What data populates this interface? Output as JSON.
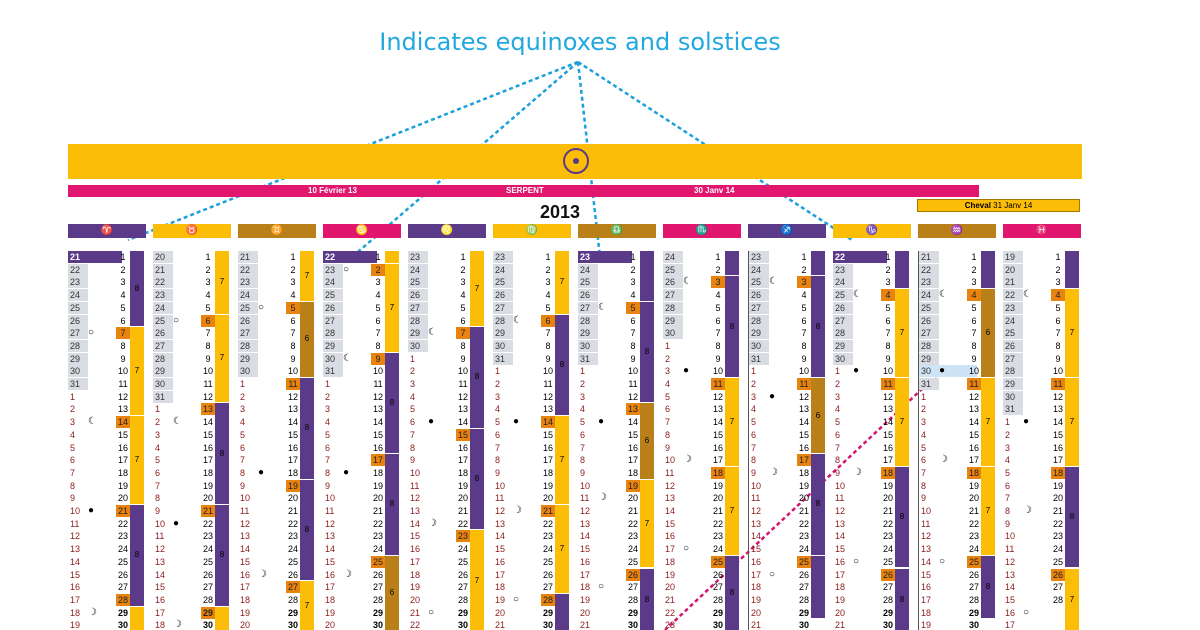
{
  "annotation": {
    "text": "Indicates equinoxes and solstices"
  },
  "year": "2013",
  "serpent": {
    "start": "10 Février 13",
    "name": "SERPENT",
    "end": "30 Janv 14"
  },
  "cheval": {
    "name": "Cheval",
    "date": "31 Janv 14"
  },
  "colors": {
    "purple": "#5b3a8a",
    "gold": "#fbbd05",
    "orange": "#e9830f",
    "ochre": "#b9801a",
    "magenta": "#e0166f",
    "grey": "#d9dde3",
    "red_text": "#8b1a1a"
  },
  "signs": [
    {
      "glyph": "♈",
      "color": "#5b3a8a"
    },
    {
      "glyph": "♉",
      "color": "#fbbd05"
    },
    {
      "glyph": "♊",
      "color": "#b9801a"
    },
    {
      "glyph": "♋",
      "color": "#e0166f"
    },
    {
      "glyph": "♌",
      "color": "#5b3a8a"
    },
    {
      "glyph": "♍",
      "color": "#fbbd05"
    },
    {
      "glyph": "♎",
      "color": "#b9801a"
    },
    {
      "glyph": "♏",
      "color": "#e0166f"
    },
    {
      "glyph": "♐",
      "color": "#5b3a8a"
    },
    {
      "glyph": "♑",
      "color": "#fbbd05"
    },
    {
      "glyph": "♒",
      "color": "#b9801a"
    },
    {
      "glyph": "♓",
      "color": "#e0166f"
    }
  ],
  "columns": [
    {
      "sign_start": 21,
      "month_len": 31,
      "prev_len": 31,
      "visible_rows": 30,
      "moon": {
        "27": "○",
        "3": "☾",
        "10": "●",
        "18": "☽"
      },
      "equinox": true,
      "right_start": 1,
      "right_hl": [
        7,
        14,
        21,
        28
      ],
      "segments": [
        {
          "len": 6,
          "color": "#5b3a8a",
          "label": "8"
        },
        {
          "len": 7,
          "color": "#fbbd05",
          "label": "7"
        },
        {
          "len": 7,
          "color": "#fbbd05",
          "label": "7"
        },
        {
          "len": 8,
          "color": "#5b3a8a",
          "label": "8"
        },
        {
          "len": 4,
          "color": "#fbbd05",
          "label": ""
        }
      ]
    },
    {
      "sign_start": 20,
      "month_len": 30,
      "prev_len": 31,
      "visible_rows": 30,
      "moon": {
        "25": "○",
        "2": "☾",
        "10": "●",
        "18": "☽"
      },
      "right_start": 1,
      "right_hl": [
        6,
        13,
        21,
        29
      ],
      "segments": [
        {
          "len": 5,
          "color": "#fbbd05",
          "label": "7"
        },
        {
          "len": 7,
          "color": "#fbbd05",
          "label": "7"
        },
        {
          "len": 8,
          "color": "#5b3a8a",
          "label": "8"
        },
        {
          "len": 8,
          "color": "#5b3a8a",
          "label": "8"
        },
        {
          "len": 4,
          "color": "#fbbd05",
          "label": ""
        }
      ]
    },
    {
      "sign_start": 21,
      "month_len": 31,
      "prev_len": 30,
      "visible_rows": 30,
      "moon": {
        "25": "○",
        "31": "☾",
        "8": "●",
        "16": "☽"
      },
      "right_start": 1,
      "right_hl": [
        5,
        11,
        19,
        27
      ],
      "segments": [
        {
          "len": 4,
          "color": "#fbbd05",
          "label": "7"
        },
        {
          "len": 6,
          "color": "#b9801a",
          "label": "6"
        },
        {
          "len": 8,
          "color": "#5b3a8a",
          "label": "8"
        },
        {
          "len": 8,
          "color": "#5b3a8a",
          "label": "8"
        },
        {
          "len": 4,
          "color": "#fbbd05",
          "label": "7"
        }
      ]
    },
    {
      "sign_start": 22,
      "month_len": 30,
      "prev_len": 31,
      "visible_rows": 30,
      "moon": {
        "23": "○",
        "30": "☾",
        "8": "●",
        "16": "☽"
      },
      "equinox": true,
      "right_start": 1,
      "right_hl": [
        2,
        9,
        17,
        25
      ],
      "segments": [
        {
          "len": 1,
          "color": "#fbbd05",
          "label": ""
        },
        {
          "len": 7,
          "color": "#fbbd05",
          "label": "7"
        },
        {
          "len": 8,
          "color": "#5b3a8a",
          "label": "8"
        },
        {
          "len": 8,
          "color": "#5b3a8a",
          "label": "8"
        },
        {
          "len": 6,
          "color": "#b9801a",
          "label": "6"
        }
      ]
    },
    {
      "sign_start": 23,
      "month_len": 31,
      "prev_len": 30,
      "visible_rows": 30,
      "moon": {
        "29": "☾",
        "6": "●",
        "14": "☽",
        "21": "○"
      },
      "right_start": 1,
      "right_hl": [
        7,
        15,
        23
      ],
      "segments": [
        {
          "len": 6,
          "color": "#fbbd05",
          "label": "7"
        },
        {
          "len": 8,
          "color": "#5b3a8a",
          "label": "8"
        },
        {
          "len": 8,
          "color": "#5b3a8a",
          "label": "8"
        },
        {
          "len": 8,
          "color": "#fbbd05",
          "label": "7"
        }
      ]
    },
    {
      "sign_start": 23,
      "month_len": 31,
      "prev_len": 31,
      "visible_rows": 30,
      "moon": {
        "28": "☾",
        "5": "●",
        "12": "☽",
        "19": "○"
      },
      "right_start": 1,
      "right_hl": [
        6,
        14,
        21,
        28
      ],
      "segments": [
        {
          "len": 5,
          "color": "#fbbd05",
          "label": "7"
        },
        {
          "len": 8,
          "color": "#5b3a8a",
          "label": "8"
        },
        {
          "len": 7,
          "color": "#fbbd05",
          "label": "7"
        },
        {
          "len": 7,
          "color": "#fbbd05",
          "label": "7"
        },
        {
          "len": 4,
          "color": "#5b3a8a",
          "label": ""
        }
      ]
    },
    {
      "sign_start": 23,
      "month_len": 30,
      "prev_len": 31,
      "visible_rows": 30,
      "moon": {
        "27": "☾",
        "5": "●",
        "11": "☽",
        "18": "○"
      },
      "equinox": true,
      "right_start": 1,
      "right_hl": [
        5,
        13,
        19,
        26
      ],
      "segments": [
        {
          "len": 4,
          "color": "#5b3a8a",
          "label": ""
        },
        {
          "len": 8,
          "color": "#5b3a8a",
          "label": "8"
        },
        {
          "len": 6,
          "color": "#b9801a",
          "label": "6"
        },
        {
          "len": 7,
          "color": "#fbbd05",
          "label": "7"
        },
        {
          "len": 5,
          "color": "#5b3a8a",
          "label": "8"
        }
      ]
    },
    {
      "sign_start": 24,
      "month_len": 31,
      "prev_len": 30,
      "visible_rows": 30,
      "moon": {
        "26": "☾",
        "3": "●",
        "10": "☽",
        "17": "○"
      },
      "right_start": 1,
      "right_hl": [
        3,
        11,
        18,
        25
      ],
      "segments": [
        {
          "len": 2,
          "color": "#5b3a8a",
          "label": ""
        },
        {
          "len": 8,
          "color": "#5b3a8a",
          "label": "8"
        },
        {
          "len": 7,
          "color": "#fbbd05",
          "label": "7"
        },
        {
          "len": 7,
          "color": "#fbbd05",
          "label": "7"
        },
        {
          "len": 6,
          "color": "#5b3a8a",
          "label": "8"
        }
      ]
    },
    {
      "sign_start": 23,
      "month_len": 30,
      "prev_len": 31,
      "visible_rows": 29,
      "moon": {
        "25": "☾",
        "3": "●",
        "9": "☽",
        "17": "○"
      },
      "boxed": true,
      "right_start": 1,
      "right_hl": [
        3,
        11,
        17,
        25
      ],
      "segments": [
        {
          "len": 2,
          "color": "#5b3a8a",
          "label": ""
        },
        {
          "len": 8,
          "color": "#5b3a8a",
          "label": "8"
        },
        {
          "len": 6,
          "color": "#b9801a",
          "label": "6"
        },
        {
          "len": 8,
          "color": "#5b3a8a",
          "label": "8"
        },
        {
          "len": 5,
          "color": "#5b3a8a",
          "label": ""
        }
      ]
    },
    {
      "sign_start": 22,
      "month_len": 31,
      "prev_len": 30,
      "visible_rows": 30,
      "moon": {
        "25": "☾",
        "1": "●",
        "9": "☽",
        "16": "○"
      },
      "equinox": true,
      "right_start": 1,
      "right_hl": [
        4,
        11,
        18,
        26
      ],
      "segments": [
        {
          "len": 3,
          "color": "#5b3a8a",
          "label": ""
        },
        {
          "len": 7,
          "color": "#fbbd05",
          "label": "7"
        },
        {
          "len": 7,
          "color": "#fbbd05",
          "label": "7"
        },
        {
          "len": 8,
          "color": "#5b3a8a",
          "label": "8"
        },
        {
          "len": 5,
          "color": "#5b3a8a",
          "label": "8"
        }
      ]
    },
    {
      "sign_start": 21,
      "month_len": 31,
      "prev_len": 31,
      "visible_rows": 29,
      "moon": {
        "24": "☾",
        "30": "●",
        "6": "☽",
        "14": "○"
      },
      "boxed": true,
      "highlight_row": 9,
      "right_start": 1,
      "right_hl": [
        4,
        11,
        18,
        25
      ],
      "segments": [
        {
          "len": 3,
          "color": "#5b3a8a",
          "label": ""
        },
        {
          "len": 7,
          "color": "#b9801a",
          "label": "6"
        },
        {
          "len": 7,
          "color": "#fbbd05",
          "label": "7"
        },
        {
          "len": 7,
          "color": "#fbbd05",
          "label": "7"
        },
        {
          "len": 5,
          "color": "#5b3a8a",
          "label": "8"
        }
      ]
    },
    {
      "sign_start": 19,
      "month_len": 28,
      "prev_len": 31,
      "visible_rows": 30,
      "moon": {
        "22": "☾",
        "1": "●",
        "8": "☽",
        "16": "○"
      },
      "right_start": 1,
      "right_hl": [
        4,
        11,
        18,
        26
      ],
      "segments": [
        {
          "len": 3,
          "color": "#5b3a8a",
          "label": ""
        },
        {
          "len": 7,
          "color": "#fbbd05",
          "label": "7"
        },
        {
          "len": 7,
          "color": "#fbbd05",
          "label": "7"
        },
        {
          "len": 8,
          "color": "#5b3a8a",
          "label": "8"
        },
        {
          "len": 5,
          "color": "#fbbd05",
          "label": "7"
        }
      ]
    }
  ]
}
